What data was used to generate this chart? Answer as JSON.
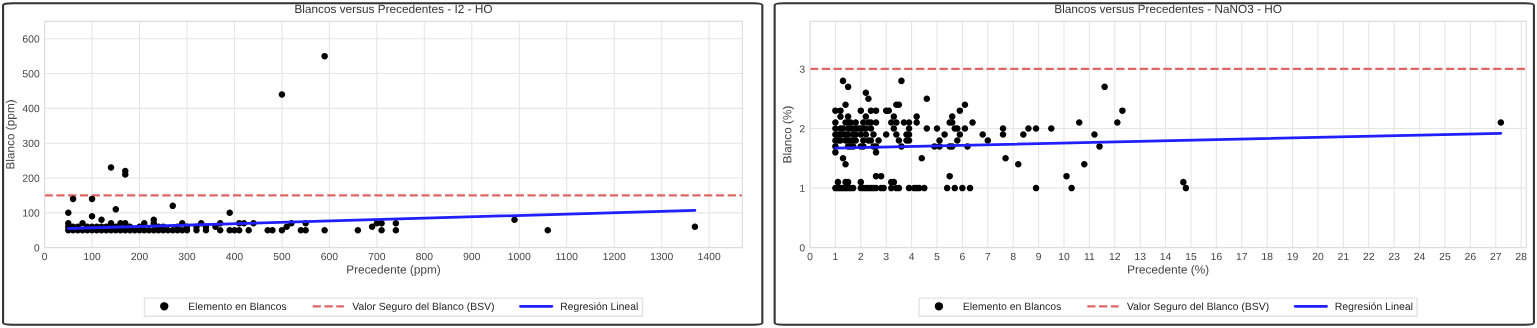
{
  "chart_data": [
    {
      "type": "scatter",
      "title": "Blancos versus Precedentes - I2 - HO",
      "xlabel": "Precedente (ppm)",
      "ylabel": "Blanco (ppm)",
      "xlim": [
        0,
        1470
      ],
      "ylim": [
        0,
        650
      ],
      "xticks": [
        0,
        100,
        200,
        300,
        400,
        500,
        600,
        700,
        800,
        900,
        1000,
        1100,
        1200,
        1300,
        1400
      ],
      "yticks": [
        0,
        100,
        200,
        300,
        400,
        500,
        600
      ],
      "grid": true,
      "legend": "bottom",
      "ref_lines": [
        {
          "axis": "y",
          "value": 150,
          "label": "Valor Seguro del Blanco (BSV)",
          "color": "#e06666",
          "line_style": "dashed"
        }
      ],
      "series": [
        {
          "name": "Elemento en Blancos",
          "marker": "circle",
          "color": "#000000",
          "x": [
            50,
            50,
            50,
            50,
            60,
            60,
            60,
            70,
            70,
            80,
            80,
            90,
            90,
            100,
            100,
            100,
            100,
            110,
            110,
            120,
            120,
            120,
            130,
            130,
            140,
            140,
            140,
            150,
            150,
            150,
            160,
            160,
            170,
            170,
            170,
            170,
            180,
            180,
            190,
            200,
            200,
            210,
            210,
            220,
            230,
            230,
            230,
            240,
            240,
            250,
            250,
            260,
            270,
            270,
            280,
            280,
            290,
            290,
            300,
            300,
            320,
            320,
            330,
            340,
            340,
            360,
            370,
            370,
            390,
            390,
            400,
            410,
            410,
            420,
            430,
            440,
            470,
            480,
            500,
            500,
            510,
            520,
            540,
            550,
            550,
            590,
            590,
            660,
            690,
            700,
            710,
            710,
            740,
            740,
            990,
            1060,
            1370
          ],
          "values": [
            100,
            70,
            60,
            50,
            140,
            60,
            50,
            60,
            50,
            70,
            50,
            60,
            50,
            140,
            90,
            60,
            50,
            60,
            50,
            80,
            60,
            50,
            60,
            50,
            230,
            70,
            50,
            110,
            60,
            50,
            70,
            50,
            220,
            210,
            70,
            50,
            60,
            50,
            50,
            60,
            50,
            70,
            50,
            50,
            80,
            70,
            50,
            60,
            50,
            60,
            50,
            50,
            120,
            50,
            60,
            50,
            70,
            50,
            60,
            50,
            60,
            50,
            70,
            60,
            50,
            60,
            70,
            50,
            100,
            50,
            50,
            70,
            50,
            70,
            50,
            70,
            50,
            50,
            440,
            50,
            60,
            70,
            50,
            70,
            50,
            550,
            50,
            50,
            60,
            70,
            70,
            50,
            70,
            50,
            80,
            50,
            60
          ]
        },
        {
          "name": "Regresión Lineal",
          "type": "line",
          "color": "#1f1fff",
          "x": [
            50,
            1370
          ],
          "values": [
            55,
            107
          ]
        }
      ]
    },
    {
      "type": "scatter",
      "title": "Blancos versus Precedentes - NaNO3 - HO",
      "xlabel": "Precedente (%)",
      "ylabel": "Blanco (%)",
      "xlim": [
        0,
        28.2
      ],
      "ylim": [
        0,
        3.8
      ],
      "xticks": [
        0,
        1,
        2,
        3,
        4,
        5,
        6,
        7,
        8,
        9,
        10,
        11,
        12,
        13,
        14,
        15,
        16,
        17,
        18,
        19,
        20,
        21,
        22,
        23,
        24,
        25,
        26,
        27,
        28
      ],
      "yticks": [
        0,
        1,
        2,
        3
      ],
      "grid": true,
      "legend": "bottom",
      "ref_lines": [
        {
          "axis": "y",
          "value": 3,
          "label": "Valor Seguro del Blanco (BSV)",
          "color": "#e06666",
          "line_style": "dashed"
        }
      ],
      "series": [
        {
          "name": "Elemento en Blancos",
          "marker": "circle",
          "color": "#000000",
          "x": [
            1,
            1,
            1,
            1,
            1,
            1,
            1,
            1,
            1.1,
            1.1,
            1.1,
            1.1,
            1.2,
            1.2,
            1.2,
            1.2,
            1.2,
            1.2,
            1.3,
            1.3,
            1.3,
            1.3,
            1.3,
            1.4,
            1.4,
            1.4,
            1.4,
            1.4,
            1.4,
            1.4,
            1.5,
            1.5,
            1.5,
            1.5,
            1.5,
            1.5,
            1.5,
            1.5,
            1.5,
            1.6,
            1.6,
            1.6,
            1.6,
            1.6,
            1.7,
            1.7,
            1.7,
            1.7,
            1.7,
            1.8,
            1.8,
            1.8,
            1.8,
            1.9,
            2,
            2,
            2,
            2,
            2,
            2,
            2.1,
            2.1,
            2.1,
            2.1,
            2.1,
            2.2,
            2.2,
            2.2,
            2.2,
            2.2,
            2.3,
            2.3,
            2.3,
            2.3,
            2.4,
            2.4,
            2.4,
            2.4,
            2.4,
            2.5,
            2.5,
            2.5,
            2.6,
            2.6,
            2.6,
            2.6,
            2.6,
            2.6,
            2.7,
            2.8,
            2.8,
            2.9,
            3,
            3,
            3.1,
            3.2,
            3.2,
            3.2,
            3.3,
            3.3,
            3.3,
            3.4,
            3.4,
            3.4,
            3.4,
            3.5,
            3.5,
            3.5,
            3.6,
            3.6,
            3.7,
            3.8,
            3.8,
            3.9,
            3.9,
            3.9,
            3.9,
            3.9,
            4.1,
            4.2,
            4.2,
            4.2,
            4.3,
            4.4,
            4.5,
            4.6,
            4.6,
            4.9,
            5,
            5.1,
            5.1,
            5.3,
            5.4,
            5.5,
            5.5,
            5.5,
            5.6,
            5.6,
            5.6,
            5.7,
            5.7,
            5.8,
            5.8,
            5.9,
            5.9,
            6,
            6.1,
            6.1,
            6.2,
            6.3,
            6.4,
            6.8,
            7,
            7.6,
            7.6,
            7.7,
            8.2,
            8.4,
            8.6,
            8.9,
            8.9,
            9.5,
            10.1,
            10.3,
            10.6,
            10.8,
            11.2,
            11.4,
            11.6,
            12.1,
            12.3,
            14.7,
            14.8,
            27.2
          ],
          "values": [
            2.3,
            2.1,
            2.0,
            1.9,
            1.8,
            1.7,
            1.6,
            1.0,
            1.9,
            1.8,
            1.1,
            1.0,
            2.3,
            2.2,
            2.0,
            1.9,
            1.8,
            1.0,
            2.8,
            2.0,
            1.9,
            1.5,
            1.0,
            2.4,
            2.1,
            1.9,
            1.8,
            1.4,
            1.1,
            1.0,
            2.7,
            2.2,
            2.1,
            2.0,
            1.9,
            1.8,
            1.7,
            1.1,
            1.0,
            2.1,
            2.0,
            1.8,
            1.7,
            1.0,
            2.0,
            1.9,
            1.8,
            1.7,
            1.0,
            2.1,
            2.0,
            1.9,
            1.8,
            2.0,
            2.3,
            2.0,
            1.9,
            1.7,
            1.1,
            1.0,
            2.1,
            2.0,
            1.8,
            1.7,
            1.0,
            2.6,
            2.2,
            2.0,
            1.9,
            1.0,
            2.5,
            2.1,
            1.8,
            1.0,
            2.3,
            2.1,
            2.0,
            1.8,
            1.0,
            1.9,
            1.7,
            1.0,
            2.3,
            2.1,
            1.7,
            1.6,
            1.2,
            1.0,
            1.8,
            1.2,
            1.0,
            1.0,
            2.3,
            1.9,
            2.3,
            2.1,
            1.1,
            1.0,
            2.2,
            2.0,
            1.1,
            2.4,
            2.1,
            1.9,
            1.0,
            2.4,
            1.8,
            1.0,
            2.8,
            1.7,
            2.1,
            1.9,
            1.8,
            2.1,
            2.0,
            1.9,
            1.8,
            1.0,
            1.0,
            2.2,
            2.1,
            1.0,
            1.0,
            1.5,
            1.0,
            2.5,
            2.0,
            1.7,
            2.0,
            1.8,
            1.7,
            1.9,
            1.0,
            2.1,
            1.7,
            1.2,
            2.2,
            2.1,
            1.7,
            2.0,
            1.0,
            2.0,
            1.8,
            2.3,
            1.9,
            1.0,
            2.4,
            2.0,
            1.7,
            1.0,
            2.1,
            1.9,
            1.8,
            2.0,
            1.9,
            1.5,
            1.4,
            1.9,
            2.0,
            2.0,
            1.0,
            2.0,
            1.2,
            1.0,
            2.1,
            1.4,
            1.9,
            1.7,
            2.7,
            2.1,
            2.3,
            1.1,
            1.0,
            2.1
          ]
        },
        {
          "name": "Regresión Lineal",
          "type": "line",
          "color": "#1f1fff",
          "x": [
            1,
            27.2
          ],
          "values": [
            1.67,
            1.92
          ]
        }
      ]
    }
  ]
}
